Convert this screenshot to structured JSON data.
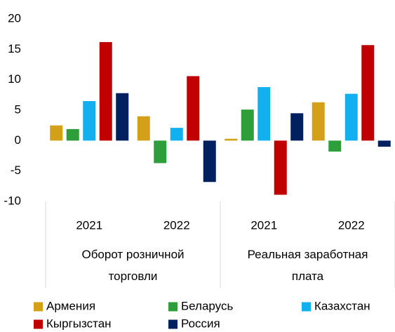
{
  "chart_data": {
    "type": "bar",
    "categories": [
      "2021",
      "2022",
      "2021",
      "2022"
    ],
    "groups": [
      "Оборот розничной торговли",
      "Реальная заработная плата"
    ],
    "series": [
      {
        "name": "Армения",
        "color": "#d4a017",
        "values": [
          2.5,
          4.0,
          0.3,
          6.3
        ]
      },
      {
        "name": "Беларусь",
        "color": "#2e9e3a",
        "values": [
          1.9,
          -3.7,
          5.1,
          -1.8
        ]
      },
      {
        "name": "Казахстан",
        "color": "#13b0f0",
        "values": [
          6.5,
          2.1,
          8.8,
          7.7
        ]
      },
      {
        "name": "Кыргызстан",
        "color": "#c00000",
        "values": [
          16.2,
          10.6,
          -8.9,
          15.7
        ]
      },
      {
        "name": "Россия",
        "color": "#002060",
        "values": [
          7.8,
          -6.8,
          4.5,
          -1.0
        ]
      }
    ],
    "ylim": [
      -10,
      20
    ],
    "yticks": [
      -10,
      -5,
      0,
      5,
      10,
      15,
      20
    ],
    "legend": "bottom"
  }
}
